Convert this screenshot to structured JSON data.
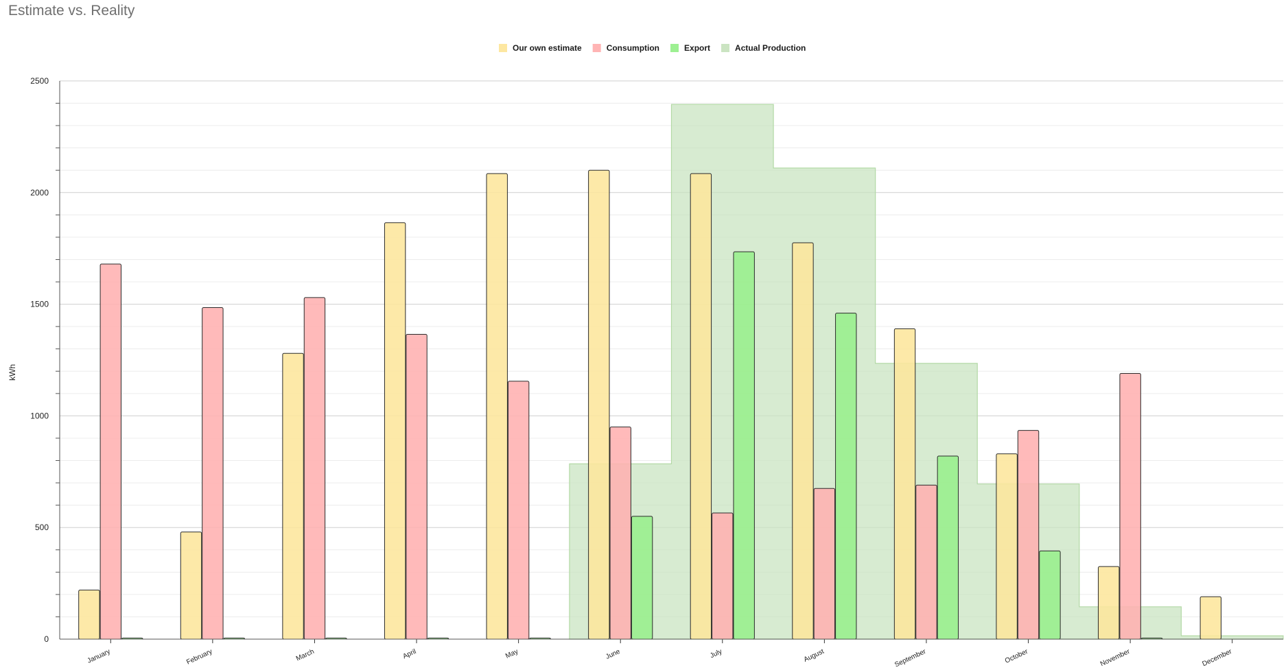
{
  "title": "Estimate vs. Reality",
  "colors": {
    "estimate": "#fde69c",
    "consumption": "#ffb0b0",
    "export": "#98ef8c",
    "production": "#c8e3bf"
  },
  "chart_data": {
    "type": "bar",
    "title": "Estimate vs. Reality",
    "xlabel": "",
    "ylabel": "kWh",
    "ylim": [
      0,
      2500
    ],
    "yticks": [
      0,
      500,
      1000,
      1500,
      2000,
      2500
    ],
    "grid": true,
    "legend_position": "top-center",
    "categories": [
      "January",
      "February",
      "March",
      "April",
      "May",
      "June",
      "July",
      "August",
      "September",
      "October",
      "November",
      "December"
    ],
    "series": [
      {
        "name": "Our own estimate",
        "type": "bar",
        "values": [
          220,
          480,
          1280,
          1865,
          2085,
          2100,
          2085,
          1775,
          1390,
          830,
          325,
          190
        ]
      },
      {
        "name": "Consumption",
        "type": "bar",
        "values": [
          1680,
          1485,
          1530,
          1365,
          1155,
          950,
          565,
          675,
          690,
          935,
          1190,
          0
        ]
      },
      {
        "name": "Export",
        "type": "bar",
        "values": [
          5,
          5,
          5,
          5,
          5,
          550,
          1735,
          1460,
          820,
          395,
          5,
          0
        ]
      },
      {
        "name": "Actual Production",
        "type": "area",
        "values": [
          0,
          0,
          0,
          0,
          0,
          785,
          2395,
          2110,
          1235,
          695,
          145,
          15
        ]
      }
    ]
  }
}
